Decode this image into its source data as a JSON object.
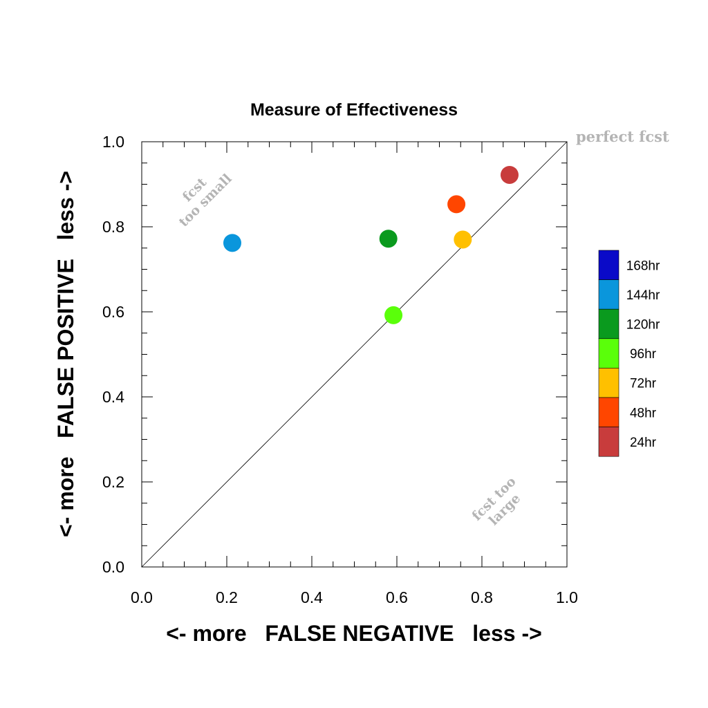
{
  "chart_data": {
    "type": "scatter",
    "title": "Measure of Effectiveness",
    "xlabel": "<- more   FALSE NEGATIVE   less ->",
    "ylabel": "<- more   FALSE POSITIVE   less ->",
    "xlim": [
      0.0,
      1.0
    ],
    "ylim": [
      0.0,
      1.0
    ],
    "xticks": [
      "0.0",
      "0.2",
      "0.4",
      "0.6",
      "0.8",
      "1.0"
    ],
    "yticks": [
      "0.0",
      "0.2",
      "0.4",
      "0.6",
      "0.8",
      "1.0"
    ],
    "grid": false,
    "legend_position": "right",
    "reference_line": "diagonal y = x",
    "annotations": {
      "perfect": "perfect fcst",
      "small_line1": "fcst",
      "small_line2": "too small",
      "large_line1": "fcst too",
      "large_line2": "large"
    },
    "legend": [
      {
        "label": "168hr",
        "color": "#0a0ac8"
      },
      {
        "label": "144hr",
        "color": "#0a96dc"
      },
      {
        "label": "120hr",
        "color": "#0a9a1e"
      },
      {
        "label": "96hr",
        "color": "#5aff0a"
      },
      {
        "label": "72hr",
        "color": "#ffc000"
      },
      {
        "label": "48hr",
        "color": "#ff4600"
      },
      {
        "label": "24hr",
        "color": "#c83c3c"
      }
    ],
    "points": [
      {
        "series": "144hr",
        "x": 0.213,
        "y": 0.762,
        "color": "#0a96dc"
      },
      {
        "series": "120hr",
        "x": 0.58,
        "y": 0.772,
        "color": "#0a9a1e"
      },
      {
        "series": "96hr",
        "x": 0.592,
        "y": 0.592,
        "color": "#5aff0a"
      },
      {
        "series": "72hr",
        "x": 0.755,
        "y": 0.77,
        "color": "#ffc000"
      },
      {
        "series": "48hr",
        "x": 0.74,
        "y": 0.853,
        "color": "#ff4600"
      },
      {
        "series": "24hr",
        "x": 0.865,
        "y": 0.922,
        "color": "#c83c3c"
      }
    ]
  }
}
